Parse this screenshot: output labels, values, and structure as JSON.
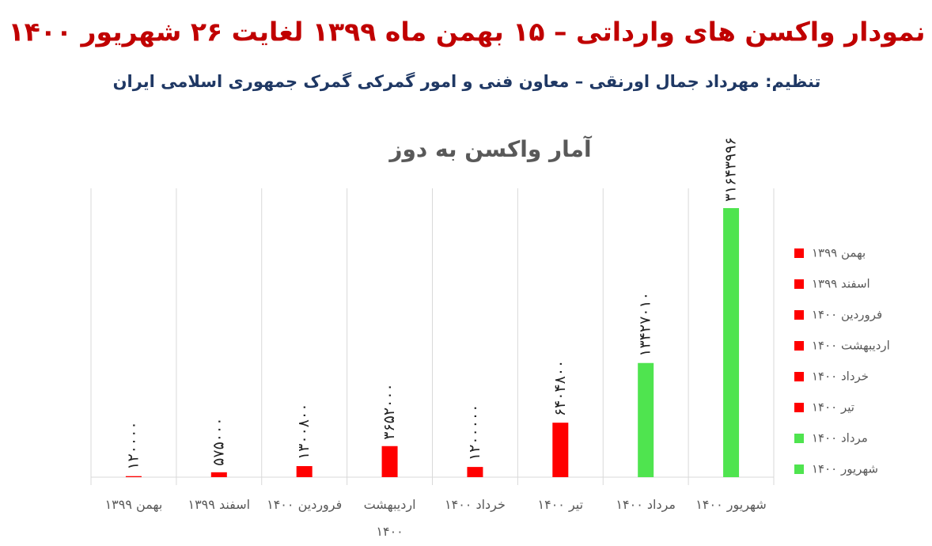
{
  "chart_data": {
    "type": "bar",
    "title": "نمودار واکسن های وارداتی – ۱۵ بهمن ماه ۱۳۹۹ لغایت ۲۶ شهریور ۱۴۰۰",
    "subtitle": "تنظیم: مهرداد جمال اورنقی – معاون فنی و امور گمرکی گمرک جمهوری اسلامی ایران",
    "chart_title": "آمار واکسن به دوز",
    "categories": [
      "بهمن ۱۳۹۹",
      "اسفند ۱۳۹۹",
      "فروردین ۱۴۰۰",
      "اردیبهشت ۱۴۰۰",
      "خرداد ۱۴۰۰",
      "تیر ۱۴۰۰",
      "مرداد ۱۴۰۰",
      "شهریور ۱۴۰۰"
    ],
    "values": [
      120000,
      575000,
      1300800,
      3652000,
      1200000,
      6404800,
      13427010,
      31643996
    ],
    "value_labels": [
      "۱۲۰۰۰۰",
      "۵۷۵۰۰۰",
      "۱۳۰۰۸۰۰",
      "۳۶۵۲۰۰۰",
      "۱۲۰۰۰۰۰",
      "۶۴۰۴۸۰۰",
      "۱۳۴۲۷۰۱۰",
      "۳۱۶۴۳۹۹۶"
    ],
    "colors": [
      "#ff0000",
      "#ff0000",
      "#ff0000",
      "#ff0000",
      "#ff0000",
      "#ff0000",
      "#4fe44f",
      "#4fe44f"
    ],
    "legend": "right"
  }
}
